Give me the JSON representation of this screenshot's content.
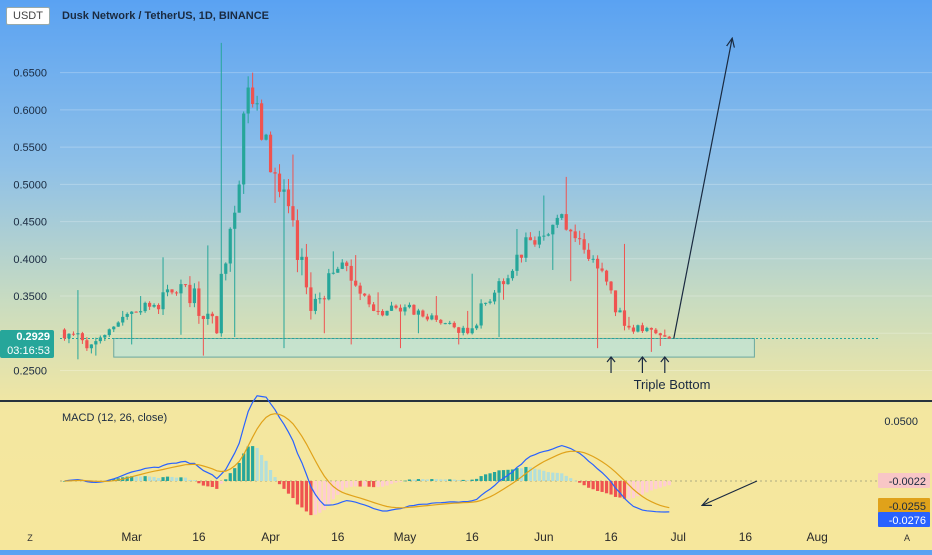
{
  "symbol_badge": "USDT",
  "title": "Dusk Network / TetherUS, 1D, BINANCE",
  "colors": {
    "up": "#26a69a",
    "down": "#ef5350",
    "macd_line": "#2962ff",
    "signal_line": "#e0a21a",
    "zone_fill": "#bfe3d6",
    "zone_border": "#6aa8a0",
    "arrow": "#1a2a40"
  },
  "price_label": {
    "value": "0.2929",
    "countdown": "03:16:53"
  },
  "annotation": {
    "text": "Triple Bottom",
    "arrows_at": [
      "Jun 16",
      "Jun 23",
      "Jun 28"
    ]
  },
  "macd": {
    "label": "MACD (12, 26, close)",
    "axis_ticks": [
      {
        "value": 0.05,
        "label": "0.0500"
      }
    ],
    "value_labels": [
      {
        "name": "histogram",
        "text": "-0.0022",
        "value": -0.0022,
        "color": "#f8c6c6"
      },
      {
        "name": "signal",
        "text": "-0.0255",
        "value": -0.0255,
        "color": "#e0a21a"
      },
      {
        "name": "macd",
        "text": "-0.0276",
        "value": -0.0276,
        "color": "#2962ff"
      }
    ]
  },
  "x_axis": {
    "labels": [
      "Mar",
      "16",
      "Apr",
      "16",
      "May",
      "16",
      "Jun",
      "16",
      "Jul",
      "16",
      "Aug"
    ],
    "corner_left": "Z",
    "corner_right": "A"
  },
  "chart_data": {
    "type": "candlestick",
    "title": "Dusk Network / TetherUS, 1D, BINANCE",
    "y_ticks": [
      0.25,
      0.3,
      0.35,
      0.4,
      0.45,
      0.5,
      0.55,
      0.6,
      0.65
    ],
    "y_tick_labels": [
      "0.2500",
      "0.3000",
      "0.3500",
      "0.4000",
      "0.4500",
      "0.5000",
      "0.5500",
      "0.6000",
      "0.6500"
    ],
    "ylim": [
      0.225,
      0.7
    ],
    "x_range": [
      "Feb 14",
      "Aug 20"
    ],
    "support_zone": {
      "low": 0.268,
      "high": 0.293,
      "start": "Feb 26",
      "end": "Jul 18"
    },
    "projection": {
      "from": {
        "date": "Jun 30",
        "price": 0.293
      },
      "to": {
        "date": "Jul 13",
        "price": 0.695
      }
    },
    "ohlc_by_period": [
      {
        "period": "Feb 15-21",
        "open": 0.305,
        "high": 0.358,
        "low": 0.265,
        "close": 0.285
      },
      {
        "period": "Feb 22-28",
        "open": 0.285,
        "high": 0.33,
        "low": 0.27,
        "close": 0.322
      },
      {
        "period": "Mar 1-7",
        "open": 0.322,
        "high": 0.35,
        "low": 0.285,
        "close": 0.338
      },
      {
        "period": "Mar 8-14",
        "open": 0.338,
        "high": 0.402,
        "low": 0.298,
        "close": 0.365
      },
      {
        "period": "Mar 15-21",
        "open": 0.365,
        "high": 0.418,
        "low": 0.27,
        "close": 0.3
      },
      {
        "period": "Mar 22-28",
        "open": 0.3,
        "high": 0.69,
        "low": 0.295,
        "close": 0.63
      },
      {
        "period": "Mar 29-Apr 4",
        "open": 0.63,
        "high": 0.65,
        "low": 0.475,
        "close": 0.49
      },
      {
        "period": "Apr 5-11",
        "open": 0.49,
        "high": 0.54,
        "low": 0.28,
        "close": 0.33
      },
      {
        "period": "Apr 12-18",
        "open": 0.33,
        "high": 0.41,
        "low": 0.3,
        "close": 0.395
      },
      {
        "period": "Apr 19-25",
        "open": 0.395,
        "high": 0.405,
        "low": 0.285,
        "close": 0.33
      },
      {
        "period": "Apr 26-May 2",
        "open": 0.33,
        "high": 0.355,
        "low": 0.28,
        "close": 0.335
      },
      {
        "period": "May 3-9",
        "open": 0.335,
        "high": 0.35,
        "low": 0.3,
        "close": 0.318
      },
      {
        "period": "May 10-16",
        "open": 0.318,
        "high": 0.33,
        "low": 0.285,
        "close": 0.3
      },
      {
        "period": "May 17-23",
        "open": 0.3,
        "high": 0.38,
        "low": 0.295,
        "close": 0.37
      },
      {
        "period": "May 24-30",
        "open": 0.37,
        "high": 0.44,
        "low": 0.345,
        "close": 0.425
      },
      {
        "period": "May 31-Jun 6",
        "open": 0.425,
        "high": 0.485,
        "low": 0.385,
        "close": 0.46
      },
      {
        "period": "Jun 7-13",
        "open": 0.46,
        "high": 0.51,
        "low": 0.37,
        "close": 0.4
      },
      {
        "period": "Jun 14-20",
        "open": 0.4,
        "high": 0.42,
        "low": 0.28,
        "close": 0.31
      },
      {
        "period": "Jun 21-27",
        "open": 0.31,
        "high": 0.322,
        "low": 0.275,
        "close": 0.3
      },
      {
        "period": "Jun 28-30",
        "open": 0.3,
        "high": 0.305,
        "low": 0.283,
        "close": 0.2929
      }
    ]
  }
}
